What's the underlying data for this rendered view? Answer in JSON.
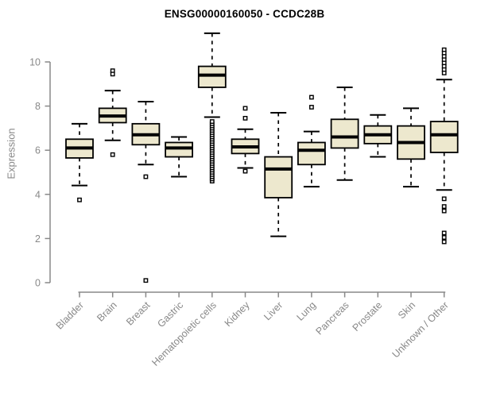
{
  "title": "ENSG00000160050 - CCDC28B",
  "colors": {
    "box_fill": "#ede8ce",
    "box_stroke": "#000000",
    "axis": "#888888",
    "axis_text": "#888888",
    "title_text": "#000000",
    "outlier_fill": "#ffffff"
  },
  "chart_data": {
    "type": "boxplot",
    "title": "ENSG00000160050 - CCDC28B",
    "xlabel": "",
    "ylabel": "Expression",
    "yticks": [
      0,
      2,
      4,
      6,
      8,
      10
    ],
    "ylim": [
      0,
      11.5
    ],
    "grid": false,
    "legend": "none",
    "categories": [
      "Bladder",
      "Brain",
      "Breast",
      "Gastric",
      "Hematopoietic cells",
      "Kidney",
      "Liver",
      "Lung",
      "Pancreas",
      "Prostate",
      "Skin",
      "Unknown / Other"
    ],
    "series": [
      {
        "category": "Bladder",
        "whisker_low": 4.4,
        "q1": 5.65,
        "median": 6.1,
        "q3": 6.5,
        "whisker_high": 7.2,
        "outliers": [
          3.75
        ]
      },
      {
        "category": "Brain",
        "whisker_low": 6.45,
        "q1": 7.25,
        "median": 7.55,
        "q3": 7.9,
        "whisker_high": 8.7,
        "outliers": [
          9.6,
          9.45,
          5.8
        ]
      },
      {
        "category": "Breast",
        "whisker_low": 5.35,
        "q1": 6.25,
        "median": 6.7,
        "q3": 7.2,
        "whisker_high": 8.2,
        "outliers": [
          4.8,
          0.1
        ]
      },
      {
        "category": "Gastric",
        "whisker_low": 4.8,
        "q1": 5.7,
        "median": 6.1,
        "q3": 6.35,
        "whisker_high": 6.6,
        "outliers": []
      },
      {
        "category": "Hematopoietic cells",
        "whisker_low": 7.5,
        "q1": 8.85,
        "median": 9.4,
        "q3": 9.8,
        "whisker_high": 11.3,
        "outliers": [
          4.6,
          4.7,
          4.8,
          4.9,
          5.0,
          5.1,
          5.2,
          5.3,
          5.4,
          5.5,
          5.6,
          5.7,
          5.8,
          5.9,
          6.0,
          6.1,
          6.2,
          6.3,
          6.4,
          6.5,
          6.6,
          6.7,
          6.8,
          6.9,
          7.0,
          7.1,
          7.2,
          7.3
        ]
      },
      {
        "category": "Kidney",
        "whisker_low": 5.2,
        "q1": 5.85,
        "median": 6.15,
        "q3": 6.5,
        "whisker_high": 6.95,
        "outliers": [
          7.9,
          7.45,
          5.05
        ]
      },
      {
        "category": "Liver",
        "whisker_low": 2.1,
        "q1": 3.85,
        "median": 5.15,
        "q3": 5.7,
        "whisker_high": 7.7,
        "outliers": []
      },
      {
        "category": "Lung",
        "whisker_low": 4.35,
        "q1": 5.35,
        "median": 6.0,
        "q3": 6.35,
        "whisker_high": 6.85,
        "outliers": [
          8.4,
          7.95
        ]
      },
      {
        "category": "Pancreas",
        "whisker_low": 4.65,
        "q1": 6.1,
        "median": 6.6,
        "q3": 7.4,
        "whisker_high": 8.85,
        "outliers": []
      },
      {
        "category": "Prostate",
        "whisker_low": 5.7,
        "q1": 6.3,
        "median": 6.7,
        "q3": 7.1,
        "whisker_high": 7.6,
        "outliers": []
      },
      {
        "category": "Skin",
        "whisker_low": 4.35,
        "q1": 5.6,
        "median": 6.35,
        "q3": 7.1,
        "whisker_high": 7.9,
        "outliers": []
      },
      {
        "category": "Unknown / Other",
        "whisker_low": 4.2,
        "q1": 5.9,
        "median": 6.7,
        "q3": 7.3,
        "whisker_high": 9.2,
        "outliers": [
          10.55,
          10.4,
          10.25,
          10.1,
          9.95,
          9.8,
          9.65,
          9.5,
          3.8,
          3.45,
          3.25,
          2.25,
          2.05,
          1.85
        ]
      }
    ]
  }
}
